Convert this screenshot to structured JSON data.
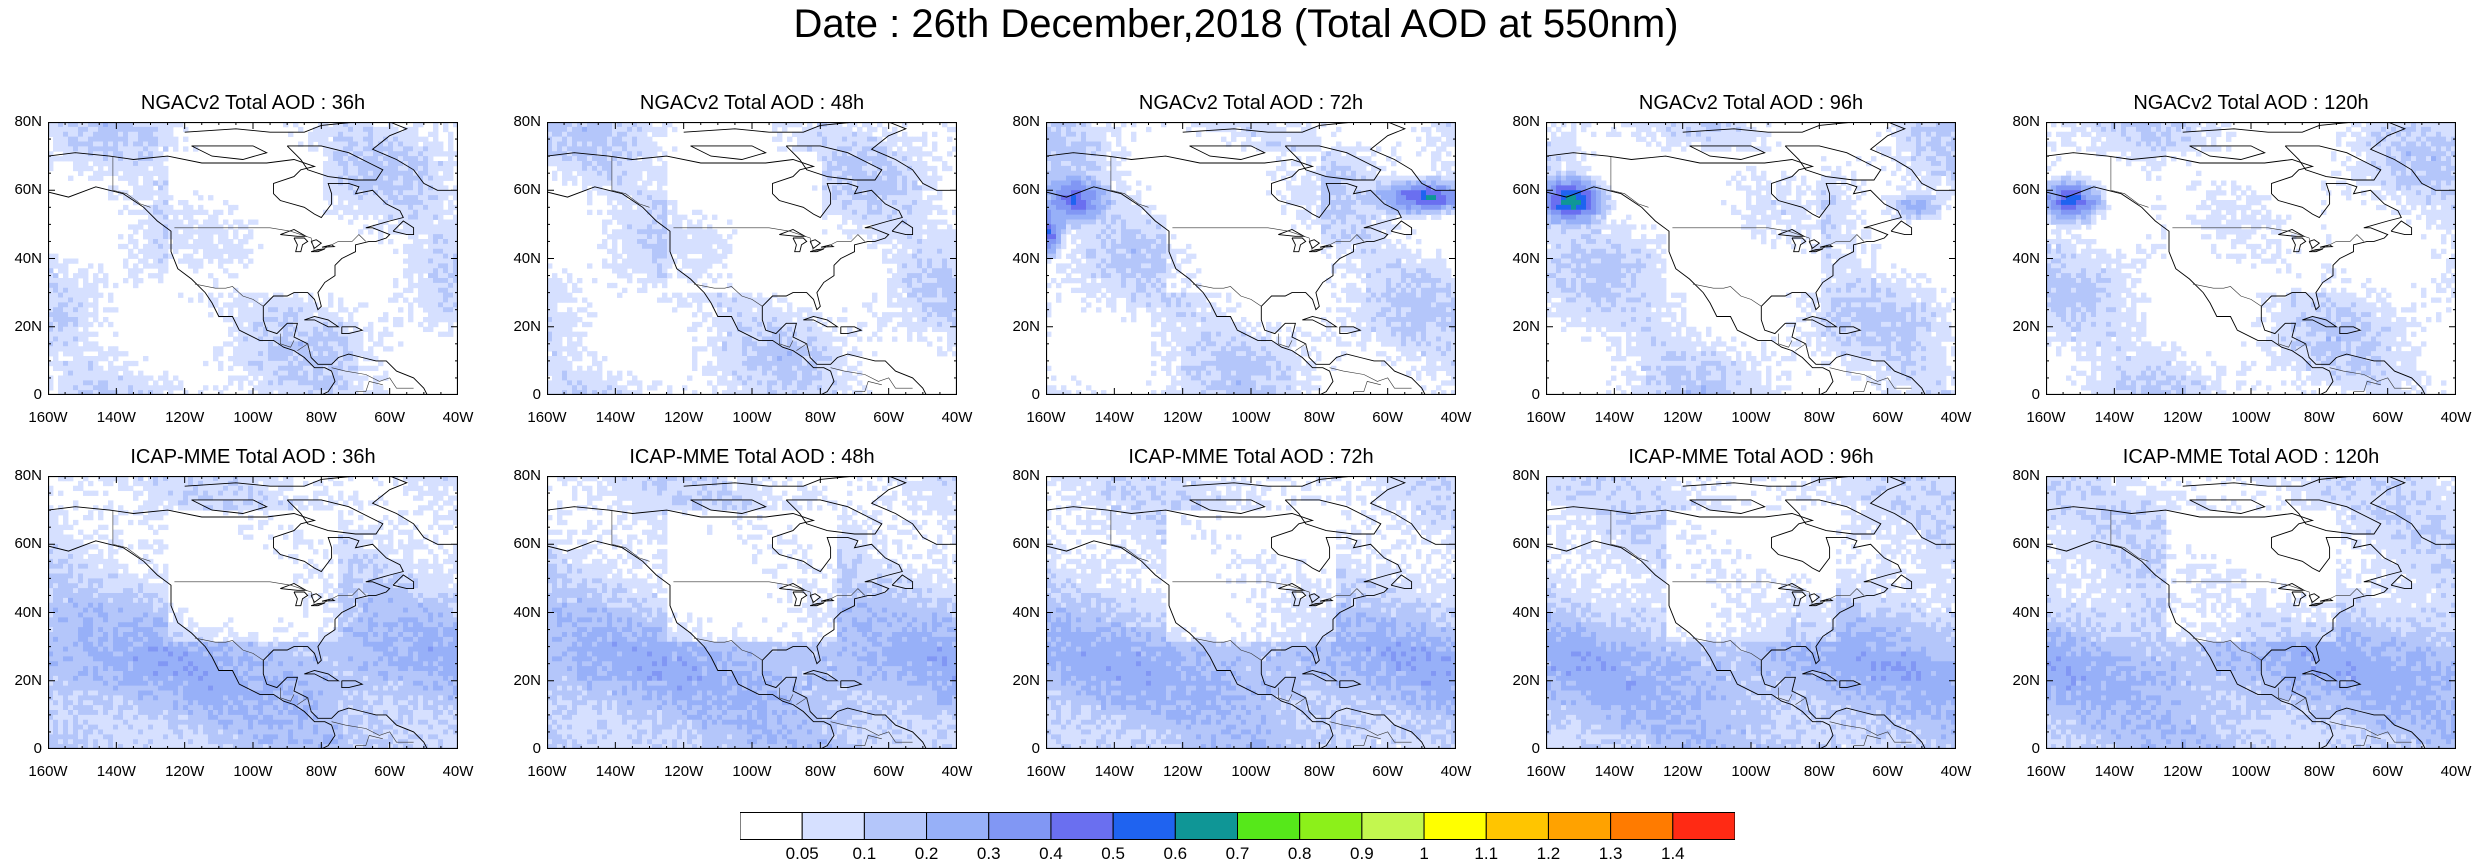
{
  "title": "Date : 26th December,2018 (Total AOD at 550nm)",
  "panels": [
    {
      "title": "NGACv2 Total AOD : 36h",
      "model": "NGACv2",
      "lead": 36
    },
    {
      "title": "NGACv2 Total AOD : 48h",
      "model": "NGACv2",
      "lead": 48
    },
    {
      "title": "NGACv2 Total AOD : 72h",
      "model": "NGACv2",
      "lead": 72
    },
    {
      "title": "NGACv2 Total AOD : 96h",
      "model": "NGACv2",
      "lead": 96
    },
    {
      "title": "NGACv2 Total AOD : 120h",
      "model": "NGACv2",
      "lead": 120
    },
    {
      "title": "ICAP-MME Total AOD : 36h",
      "model": "ICAP-MME",
      "lead": 36
    },
    {
      "title": "ICAP-MME Total AOD : 48h",
      "model": "ICAP-MME",
      "lead": 48
    },
    {
      "title": "ICAP-MME Total AOD : 72h",
      "model": "ICAP-MME",
      "lead": 72
    },
    {
      "title": "ICAP-MME Total AOD : 96h",
      "model": "ICAP-MME",
      "lead": 96
    },
    {
      "title": "ICAP-MME Total AOD : 120h",
      "model": "ICAP-MME",
      "lead": 120
    }
  ],
  "lat_ticks": [
    "80N",
    "60N",
    "40N",
    "20N",
    "0"
  ],
  "lon_ticks": [
    "160W",
    "140W",
    "120W",
    "100W",
    "80W",
    "60W",
    "40W"
  ],
  "lat_range": [
    0,
    80
  ],
  "lon_range": [
    -160,
    -40
  ],
  "colorbar": {
    "labels": [
      "0.05",
      "0.1",
      "0.2",
      "0.3",
      "0.4",
      "0.5",
      "0.6",
      "0.7",
      "0.8",
      "0.9",
      "1",
      "1.1",
      "1.2",
      "1.3",
      "1.4"
    ],
    "colors": [
      "#ffffff",
      "#d6e0ff",
      "#b4c6fa",
      "#97b0f8",
      "#8197f4",
      "#6a6ff0",
      "#1f63f0",
      "#0f9696",
      "#56e81a",
      "#8cf01a",
      "#c3f74f",
      "#ffff00",
      "#ffc500",
      "#ffa200",
      "#ff7b00",
      "#ff2a14"
    ]
  }
}
